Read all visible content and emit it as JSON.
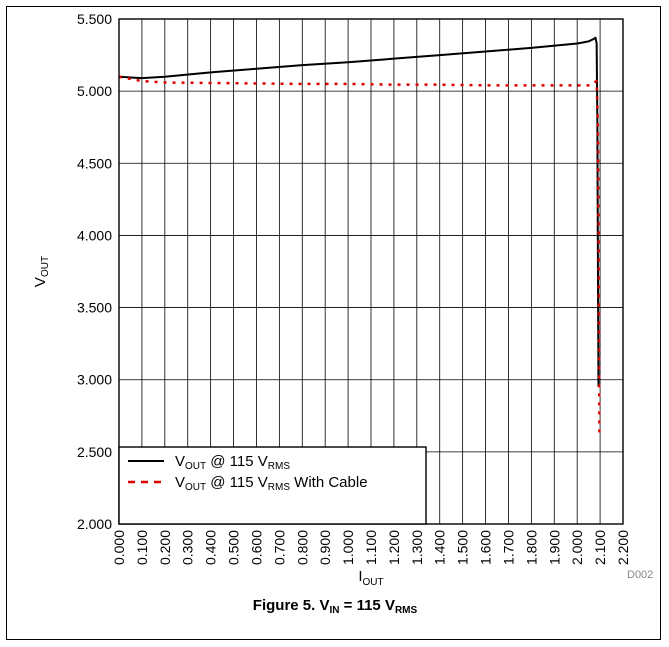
{
  "figure_id": "D002",
  "caption": {
    "prefix": "Figure 5. V",
    "sub1": "IN",
    "mid": " = 115 V",
    "sub2": "RMS"
  },
  "chart_data": {
    "type": "line",
    "xlabel": {
      "main": "I",
      "sub": "OUT"
    },
    "ylabel": {
      "main": "V",
      "sub": "OUT"
    },
    "xlim": [
      0,
      2.2
    ],
    "ylim": [
      2.0,
      5.5
    ],
    "grid": true,
    "legend_position": "bottom-left",
    "x_ticks": [
      "0.000",
      "0.100",
      "0.200",
      "0.300",
      "0.400",
      "0.500",
      "0.600",
      "0.700",
      "0.800",
      "0.900",
      "1.000",
      "1.100",
      "1.200",
      "1.300",
      "1.400",
      "1.500",
      "1.600",
      "1.700",
      "1.800",
      "1.900",
      "2.000",
      "2.100",
      "2.200"
    ],
    "y_ticks": [
      "5.500",
      "5.000",
      "4.500",
      "4.000",
      "3.500",
      "3.000",
      "2.500",
      "2.000"
    ],
    "series": [
      {
        "name_parts": [
          "V",
          "OUT",
          " @ 115 V",
          "RMS",
          ""
        ],
        "color": "#000000",
        "style": "solid",
        "points": [
          [
            0.0,
            5.1
          ],
          [
            0.05,
            5.095
          ],
          [
            0.1,
            5.09
          ],
          [
            0.2,
            5.1
          ],
          [
            0.4,
            5.13
          ],
          [
            0.6,
            5.155
          ],
          [
            0.8,
            5.18
          ],
          [
            1.0,
            5.2
          ],
          [
            1.2,
            5.225
          ],
          [
            1.4,
            5.25
          ],
          [
            1.6,
            5.275
          ],
          [
            1.8,
            5.3
          ],
          [
            2.0,
            5.33
          ],
          [
            2.05,
            5.345
          ],
          [
            2.07,
            5.36
          ],
          [
            2.08,
            5.37
          ],
          [
            2.085,
            5.33
          ],
          [
            2.088,
            4.8
          ],
          [
            2.09,
            4.0
          ],
          [
            2.092,
            3.3
          ],
          [
            2.093,
            2.95
          ]
        ]
      },
      {
        "name_parts": [
          "V",
          "OUT",
          " @ 115 V",
          "RMS",
          " With Cable"
        ],
        "color": "#e00000",
        "style": "dashed",
        "points": [
          [
            0.0,
            5.1
          ],
          [
            0.1,
            5.07
          ],
          [
            0.2,
            5.06
          ],
          [
            0.5,
            5.055
          ],
          [
            0.8,
            5.05
          ],
          [
            1.0,
            5.05
          ],
          [
            1.2,
            5.045
          ],
          [
            1.4,
            5.045
          ],
          [
            1.6,
            5.04
          ],
          [
            1.8,
            5.04
          ],
          [
            2.0,
            5.04
          ],
          [
            2.06,
            5.04
          ],
          [
            2.075,
            5.06
          ],
          [
            2.085,
            5.07
          ],
          [
            2.09,
            4.8
          ],
          [
            2.095,
            3.5
          ],
          [
            2.097,
            2.62
          ]
        ]
      }
    ]
  }
}
